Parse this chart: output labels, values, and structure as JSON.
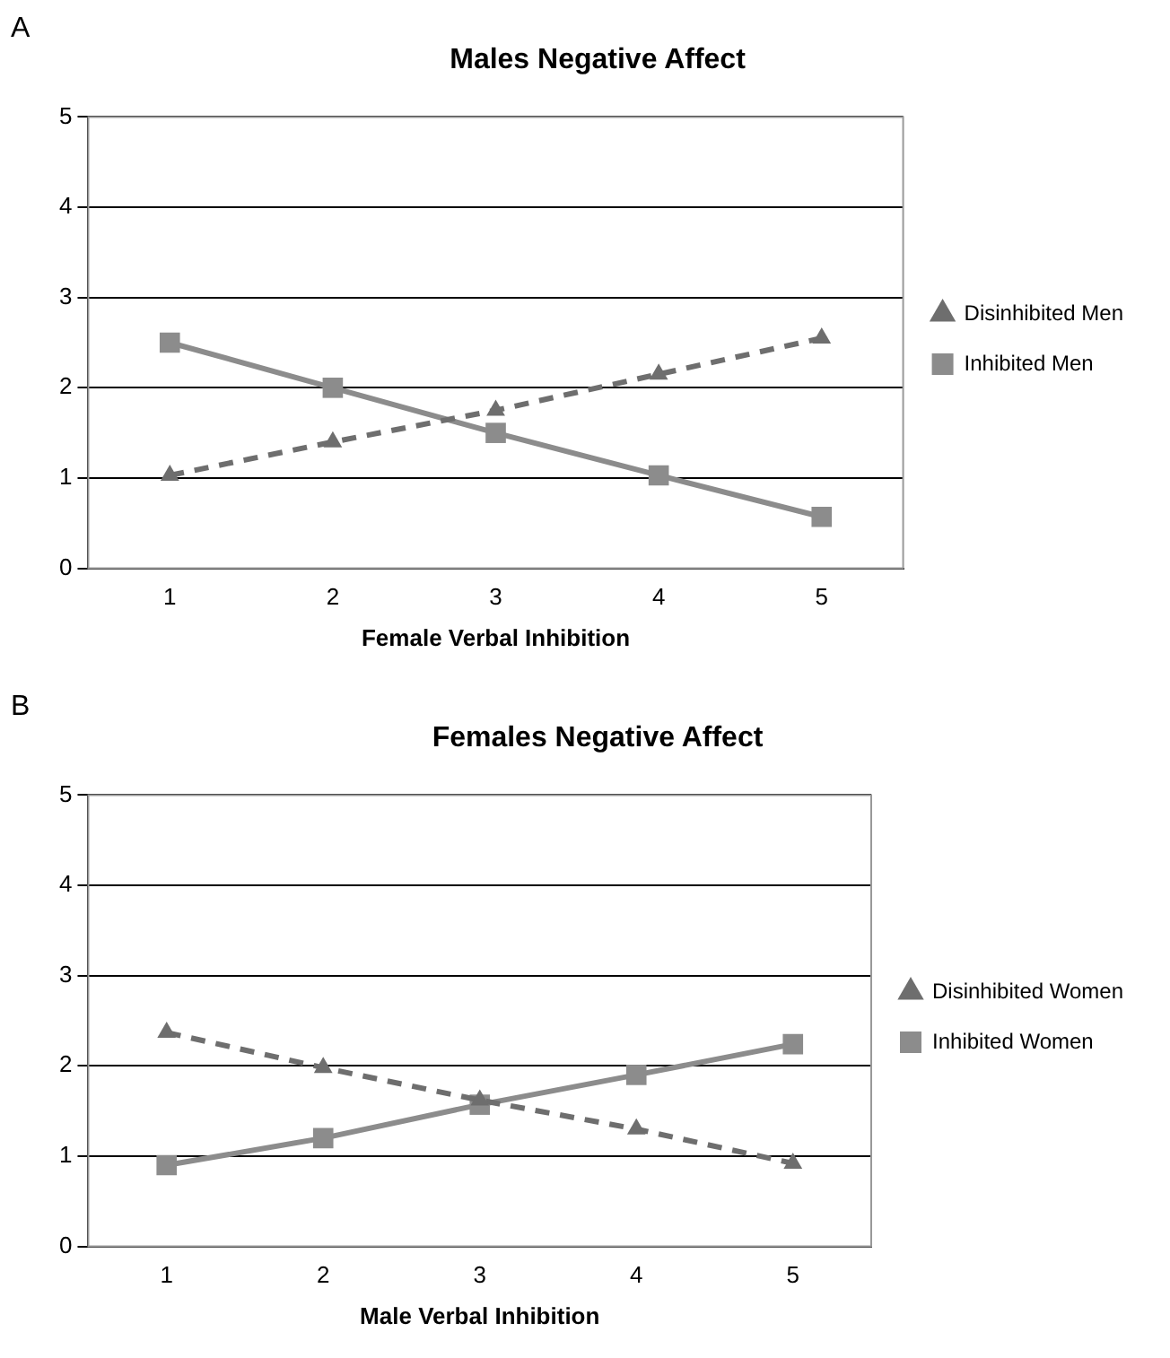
{
  "chart_data": [
    {
      "type": "line",
      "title": "Males Negative Affect",
      "xlabel": "Female Verbal Inhibition",
      "annotations": [
        "A"
      ],
      "categories": [
        "1",
        "2",
        "3",
        "4",
        "5"
      ],
      "ylim": [
        0,
        5
      ],
      "yticks": [
        0,
        1,
        2,
        3,
        4,
        5
      ],
      "grid": "y",
      "legend": "right",
      "series": [
        {
          "name": "Inhibited Men",
          "color": "#8c8c8c",
          "values": [
            2.5,
            2.0,
            1.5,
            1.03,
            0.57
          ],
          "marker": "square",
          "line_style": "solid"
        },
        {
          "name": "Disinhibited Men",
          "color": "#6e6e6e",
          "values": [
            1.03,
            1.4,
            1.75,
            2.15,
            2.55
          ],
          "marker": "triangle",
          "line_style": "dashed"
        }
      ]
    },
    {
      "type": "line",
      "title": "Females Negative Affect",
      "xlabel": "Male Verbal Inhibition",
      "annotations": [
        "B"
      ],
      "categories": [
        "1",
        "2",
        "3",
        "4",
        "5"
      ],
      "ylim": [
        0,
        5
      ],
      "yticks": [
        0,
        1,
        2,
        3,
        4,
        5
      ],
      "grid": "y",
      "legend": "right",
      "series": [
        {
          "name": "Inhibited Women",
          "color": "#8c8c8c",
          "values": [
            0.9,
            1.2,
            1.57,
            1.9,
            2.24
          ],
          "marker": "square",
          "line_style": "solid"
        },
        {
          "name": "Disinhibited Women",
          "color": "#6e6e6e",
          "values": [
            2.37,
            1.98,
            1.62,
            1.3,
            0.92
          ],
          "marker": "triangle",
          "line_style": "dashed"
        }
      ]
    }
  ]
}
